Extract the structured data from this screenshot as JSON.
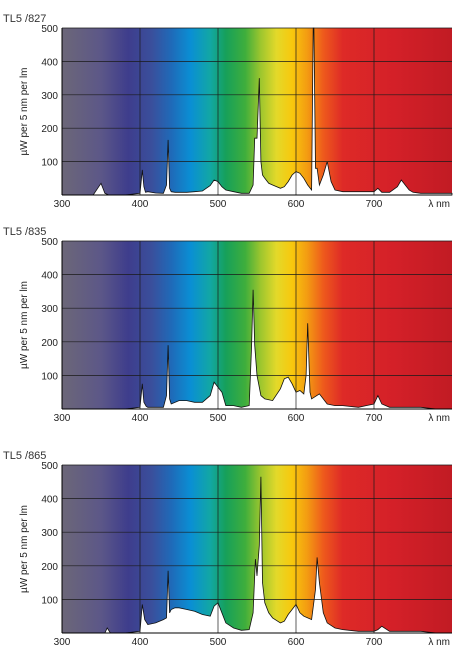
{
  "chart_data": [
    {
      "type": "area",
      "title": "TL5 /827",
      "ylabel": "µW per 5 nm per lm",
      "xlabel": "λ nm",
      "xlim": [
        300,
        800
      ],
      "ylim": [
        0,
        500
      ],
      "xticks": [
        300,
        400,
        500,
        600,
        700
      ],
      "yticks": [
        100,
        200,
        300,
        400,
        500
      ],
      "grid": true,
      "x": [
        300,
        340,
        350,
        355,
        360,
        380,
        400,
        403,
        405,
        407,
        410,
        420,
        430,
        434,
        436,
        438,
        440,
        445,
        450,
        460,
        470,
        480,
        490,
        495,
        500,
        505,
        510,
        520,
        530,
        540,
        545,
        547,
        550,
        553,
        555,
        557,
        560,
        565,
        570,
        580,
        585,
        590,
        595,
        600,
        605,
        610,
        615,
        620,
        622,
        623,
        625,
        627,
        630,
        635,
        640,
        645,
        650,
        660,
        680,
        700,
        705,
        710,
        720,
        730,
        735,
        740,
        745,
        750,
        760,
        780,
        800
      ],
      "y": [
        0,
        0,
        35,
        5,
        0,
        0,
        5,
        75,
        25,
        8,
        10,
        6,
        5,
        30,
        165,
        20,
        10,
        8,
        8,
        8,
        10,
        12,
        28,
        45,
        40,
        25,
        15,
        10,
        5,
        5,
        30,
        170,
        170,
        350,
        100,
        60,
        50,
        35,
        30,
        20,
        25,
        40,
        60,
        70,
        65,
        50,
        30,
        15,
        500,
        500,
        80,
        80,
        30,
        60,
        100,
        40,
        15,
        10,
        10,
        10,
        20,
        8,
        8,
        25,
        45,
        30,
        15,
        8,
        5,
        5,
        5
      ]
    },
    {
      "type": "area",
      "title": "TL5 /835",
      "ylabel": "µW per 5 nm per lm",
      "xlabel": "λ nm",
      "xlim": [
        300,
        800
      ],
      "ylim": [
        0,
        500
      ],
      "xticks": [
        300,
        400,
        500,
        600,
        700
      ],
      "yticks": [
        100,
        200,
        300,
        400,
        500
      ],
      "grid": true,
      "x": [
        300,
        360,
        380,
        400,
        403,
        405,
        408,
        410,
        420,
        430,
        434,
        436,
        438,
        440,
        450,
        460,
        470,
        480,
        490,
        495,
        500,
        505,
        510,
        520,
        530,
        540,
        543,
        545,
        547,
        550,
        555,
        560,
        570,
        580,
        585,
        590,
        595,
        600,
        605,
        610,
        613,
        615,
        618,
        620,
        630,
        640,
        650,
        660,
        680,
        690,
        700,
        705,
        710,
        720,
        740,
        760,
        780,
        800
      ],
      "y": [
        0,
        0,
        0,
        5,
        75,
        20,
        8,
        5,
        5,
        5,
        40,
        190,
        30,
        15,
        25,
        25,
        20,
        20,
        40,
        80,
        65,
        50,
        10,
        10,
        5,
        10,
        180,
        355,
        190,
        100,
        40,
        30,
        25,
        60,
        90,
        95,
        75,
        50,
        55,
        45,
        100,
        255,
        50,
        30,
        45,
        15,
        10,
        10,
        5,
        10,
        15,
        40,
        15,
        5,
        5,
        5,
        0,
        0
      ]
    },
    {
      "type": "area",
      "title": "TL5 /865",
      "ylabel": "µW per 5 nm per lm",
      "xlabel": "λ nm",
      "xlim": [
        300,
        800
      ],
      "ylim": [
        0,
        500
      ],
      "xticks": [
        300,
        400,
        500,
        600,
        700
      ],
      "yticks": [
        100,
        200,
        300,
        400,
        500
      ],
      "grid": true,
      "x": [
        300,
        355,
        358,
        362,
        380,
        400,
        403,
        406,
        410,
        420,
        430,
        434,
        436,
        438,
        440,
        445,
        450,
        460,
        470,
        480,
        490,
        495,
        500,
        505,
        510,
        520,
        530,
        540,
        545,
        548,
        550,
        553,
        555,
        557,
        560,
        565,
        570,
        580,
        585,
        590,
        595,
        600,
        605,
        610,
        615,
        620,
        625,
        627,
        630,
        635,
        640,
        650,
        660,
        680,
        700,
        705,
        710,
        720,
        730,
        740,
        760,
        780,
        800
      ],
      "y": [
        0,
        0,
        15,
        0,
        0,
        5,
        85,
        40,
        25,
        30,
        40,
        45,
        185,
        60,
        70,
        75,
        75,
        70,
        65,
        55,
        50,
        80,
        90,
        60,
        30,
        15,
        8,
        10,
        60,
        220,
        170,
        260,
        465,
        150,
        90,
        60,
        45,
        30,
        35,
        55,
        70,
        85,
        60,
        50,
        45,
        40,
        130,
        225,
        150,
        60,
        30,
        15,
        10,
        5,
        5,
        10,
        20,
        5,
        5,
        5,
        5,
        0,
        0
      ]
    }
  ]
}
